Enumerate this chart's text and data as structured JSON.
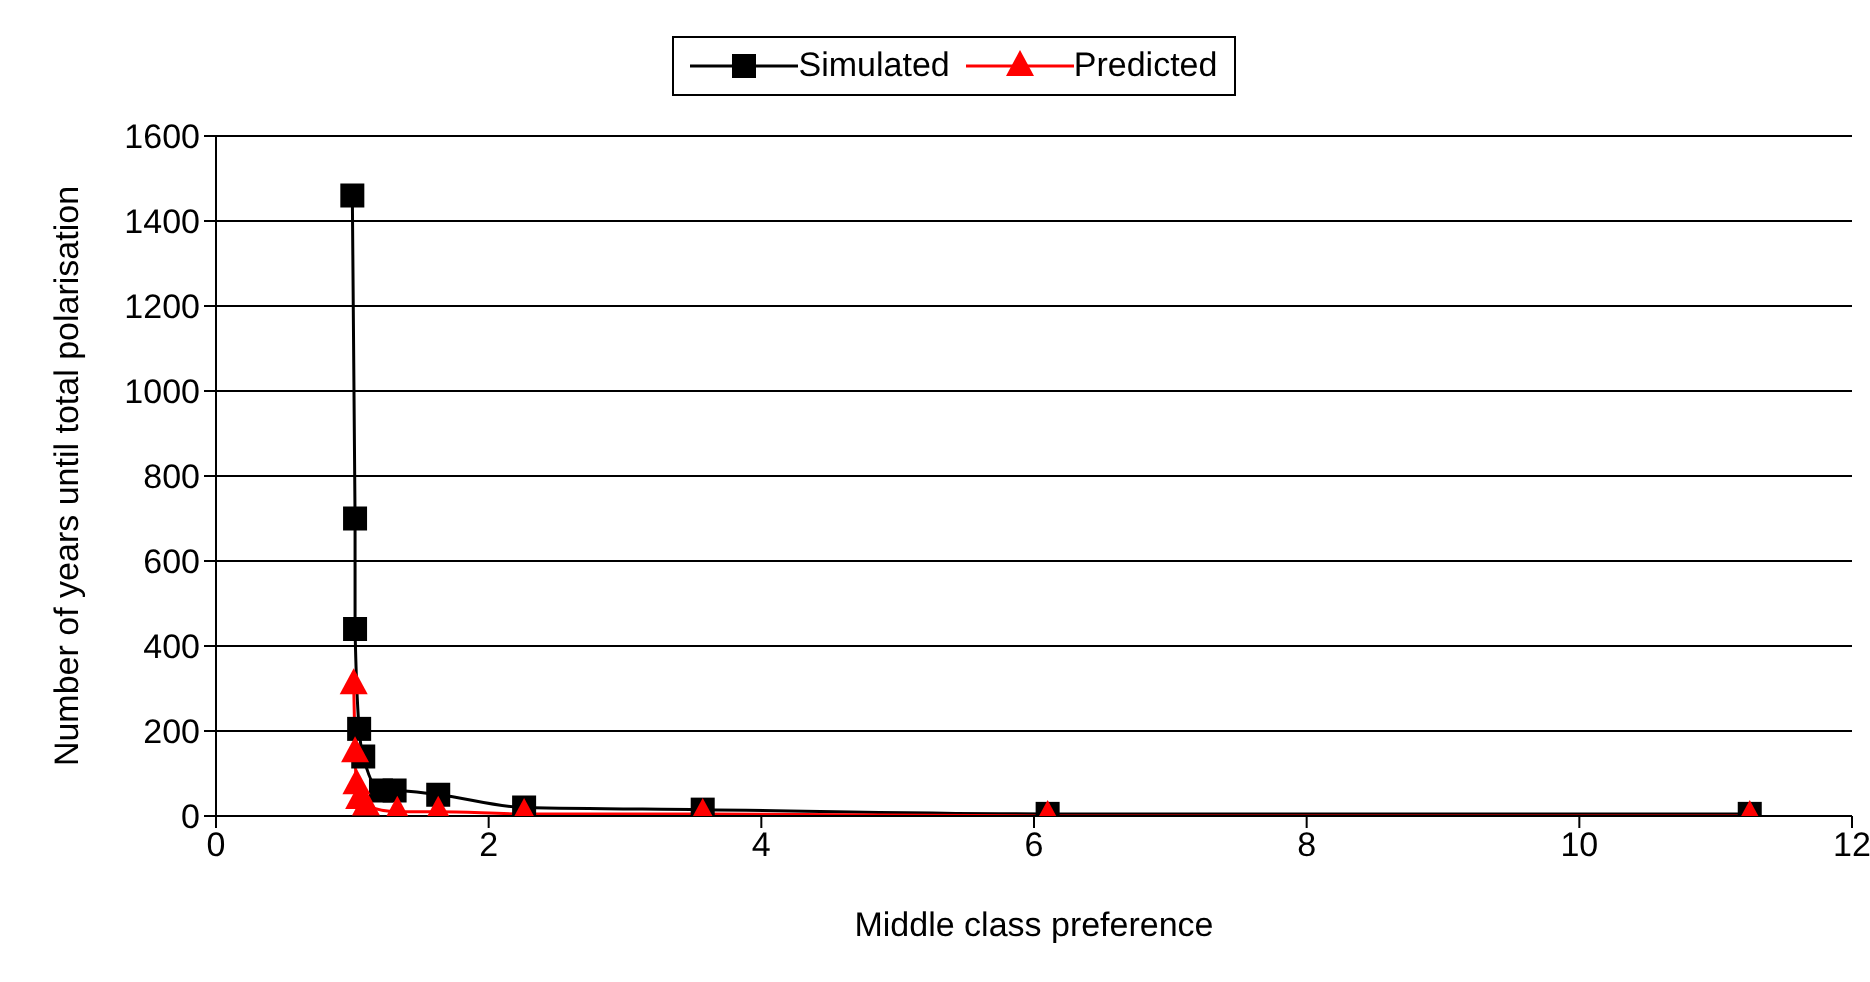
{
  "chart_data": {
    "type": "line",
    "xlabel": "Middle class preference",
    "ylabel": "Number of years until total polarisation",
    "xlim": [
      0,
      12
    ],
    "xticks": [
      0,
      2,
      4,
      6,
      8,
      10,
      12
    ],
    "ylim": [
      0,
      1600
    ],
    "yticks": [
      0,
      200,
      400,
      600,
      800,
      1000,
      1200,
      1400,
      1600
    ],
    "grid": "y",
    "legend": "top",
    "series": [
      {
        "name": "Simulated",
        "color": "#000000",
        "marker": "square",
        "x": [
          1.0,
          1.02,
          1.02,
          1.05,
          1.08,
          1.21,
          1.31,
          1.63,
          2.26,
          3.57,
          6.1,
          11.25
        ],
        "values": [
          1460,
          700,
          440,
          205,
          140,
          60,
          60,
          50,
          20,
          15,
          5,
          5
        ]
      },
      {
        "name": "Predicted",
        "color": "#ff0000",
        "marker": "triangle",
        "x": [
          1.01,
          1.02,
          1.03,
          1.05,
          1.1,
          1.33,
          1.63,
          2.26,
          3.57,
          6.1,
          11.25
        ],
        "values": [
          310,
          150,
          75,
          40,
          25,
          10,
          10,
          5,
          5,
          0,
          0
        ]
      }
    ]
  }
}
